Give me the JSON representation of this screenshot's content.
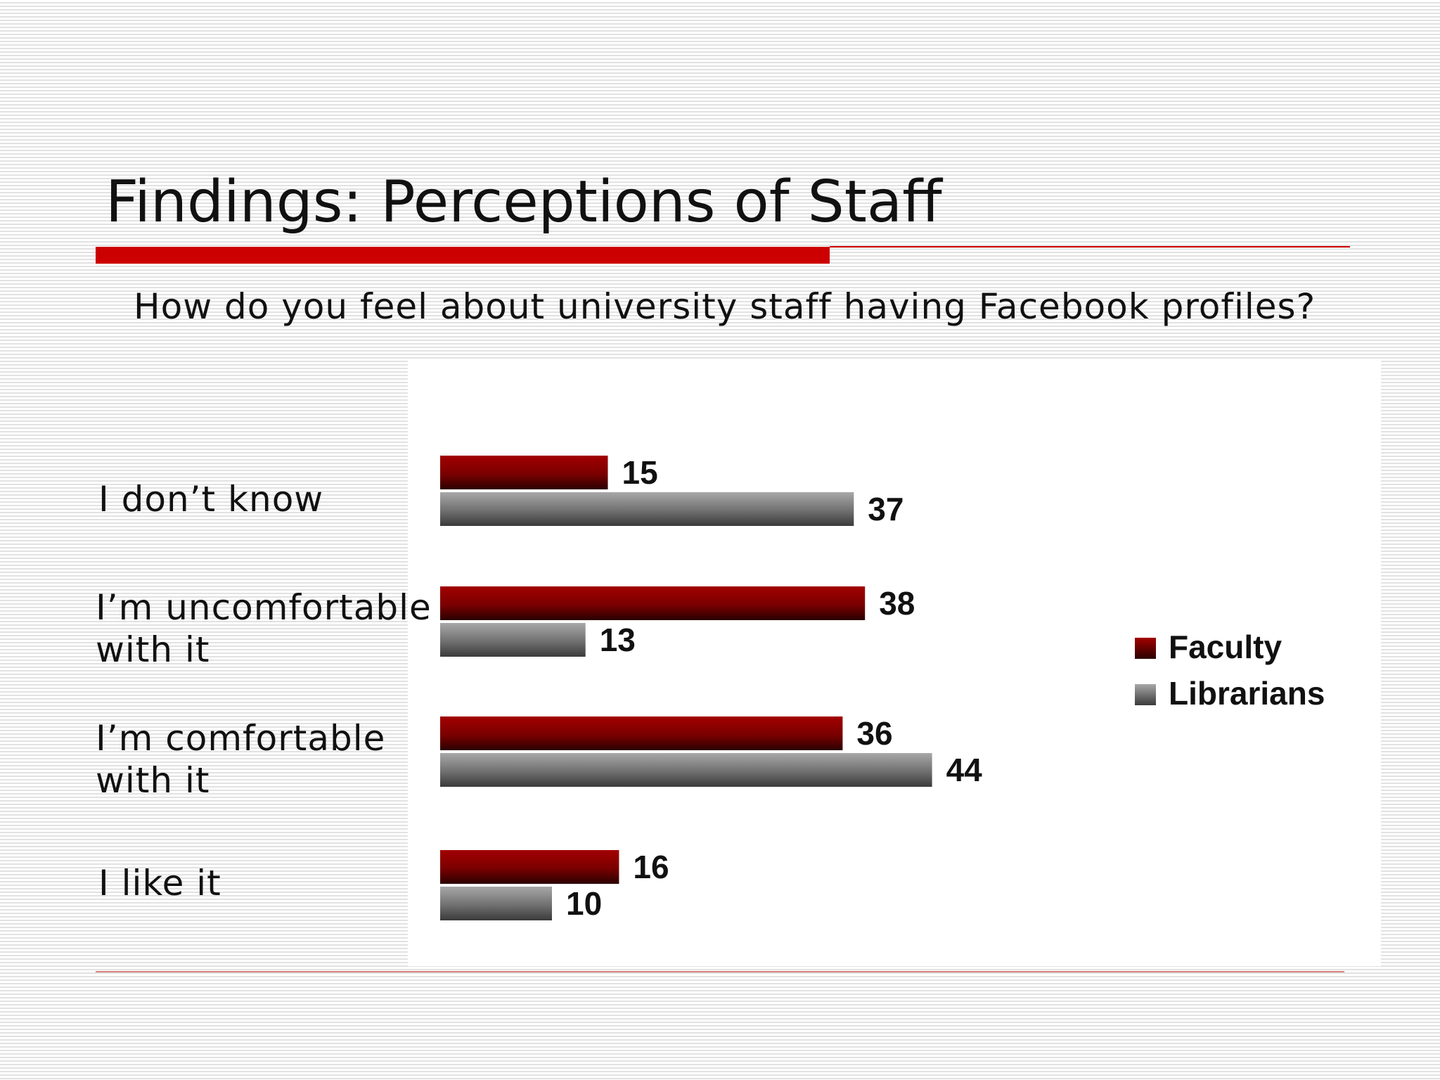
{
  "slide": {
    "title": "Findings: Perceptions of Staff",
    "subtitle": "How do you feel about university staff having Facebook profiles?"
  },
  "colors": {
    "accent": "#cc0000",
    "faculty": "#8b0000",
    "librarians": "#7a7a7a"
  },
  "chart_data": {
    "type": "bar",
    "orientation": "horizontal",
    "categories": [
      [
        "I don’t know"
      ],
      [
        "I’m uncomfortable",
        "with it"
      ],
      [
        "I’m comfortable",
        "with it"
      ],
      [
        "I like it"
      ]
    ],
    "series": [
      {
        "name": "Faculty",
        "color": "#8b0000",
        "values": [
          15,
          38,
          36,
          16
        ]
      },
      {
        "name": "Librarians",
        "color": "#7a7a7a",
        "values": [
          37,
          13,
          44,
          10
        ]
      }
    ],
    "xlim": [
      0,
      50
    ],
    "grid": false,
    "legend_position": "right"
  }
}
